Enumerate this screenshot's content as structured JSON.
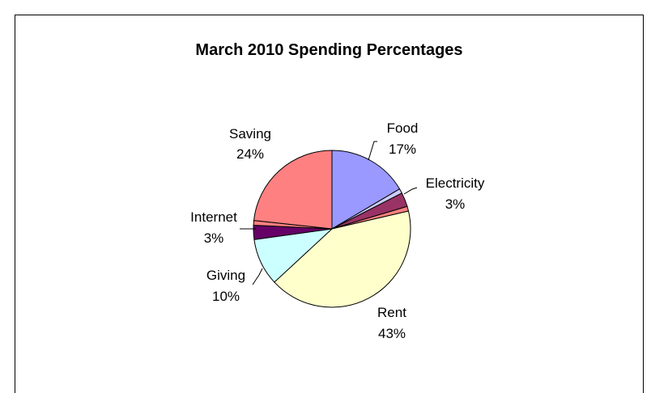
{
  "chart_data": {
    "type": "pie",
    "title": "March 2010 Spending Percentages",
    "slices": [
      {
        "label": "Food",
        "percent_label": "17%",
        "value": 17,
        "color": "#9999ff"
      },
      {
        "label": "",
        "percent_label": "",
        "value": 1,
        "color": "#ccccff"
      },
      {
        "label": "Electricity",
        "percent_label": "3%",
        "value": 3,
        "color": "#993366"
      },
      {
        "label": "",
        "percent_label": "",
        "value": 1,
        "color": "#ff8080"
      },
      {
        "label": "Rent",
        "percent_label": "43%",
        "value": 43,
        "color": "#ffffcc"
      },
      {
        "label": "Giving",
        "percent_label": "10%",
        "value": 10,
        "color": "#ccffff"
      },
      {
        "label": "Internet",
        "percent_label": "3%",
        "value": 3,
        "color": "#660066"
      },
      {
        "label": "",
        "percent_label": "",
        "value": 1,
        "color": "#ff8080"
      },
      {
        "label": "Saving",
        "percent_label": "24%",
        "value": 24,
        "color": "#ff8080"
      }
    ],
    "start": "12 o'clock",
    "direction": "clockwise",
    "legend": "none"
  }
}
